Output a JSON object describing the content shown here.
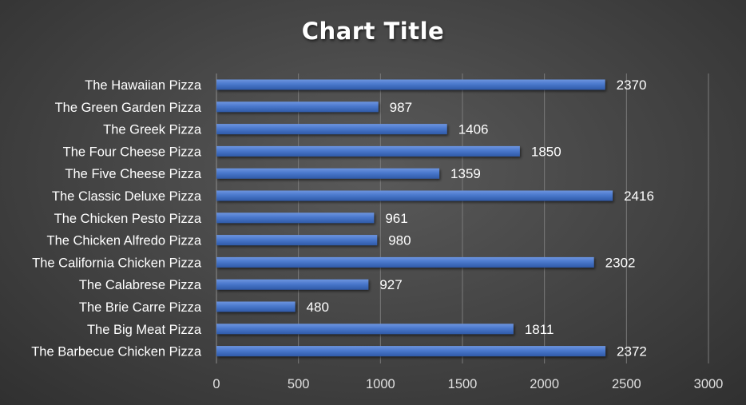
{
  "chart_data": {
    "type": "bar",
    "orientation": "horizontal",
    "title": "Chart Title",
    "categories": [
      "The Hawaiian Pizza",
      "The Green Garden Pizza",
      "The Greek Pizza",
      "The Four Cheese Pizza",
      "The Five Cheese Pizza",
      "The Classic Deluxe Pizza",
      "The Chicken Pesto Pizza",
      "The Chicken Alfredo Pizza",
      "The California Chicken Pizza",
      "The Calabrese Pizza",
      "The Brie Carre Pizza",
      "The Big Meat Pizza",
      "The Barbecue Chicken Pizza"
    ],
    "values": [
      2370,
      987,
      1406,
      1850,
      1359,
      2416,
      961,
      980,
      2302,
      927,
      480,
      1811,
      2372
    ],
    "xlim": [
      0,
      3000
    ],
    "xticks": [
      0,
      500,
      1000,
      1500,
      2000,
      2500,
      3000
    ],
    "grid": true,
    "legend": "none",
    "colors": {
      "bar": "#4472c4",
      "background": "#404040",
      "gridline": "#7a7a7a",
      "text": "#ffffff"
    }
  }
}
